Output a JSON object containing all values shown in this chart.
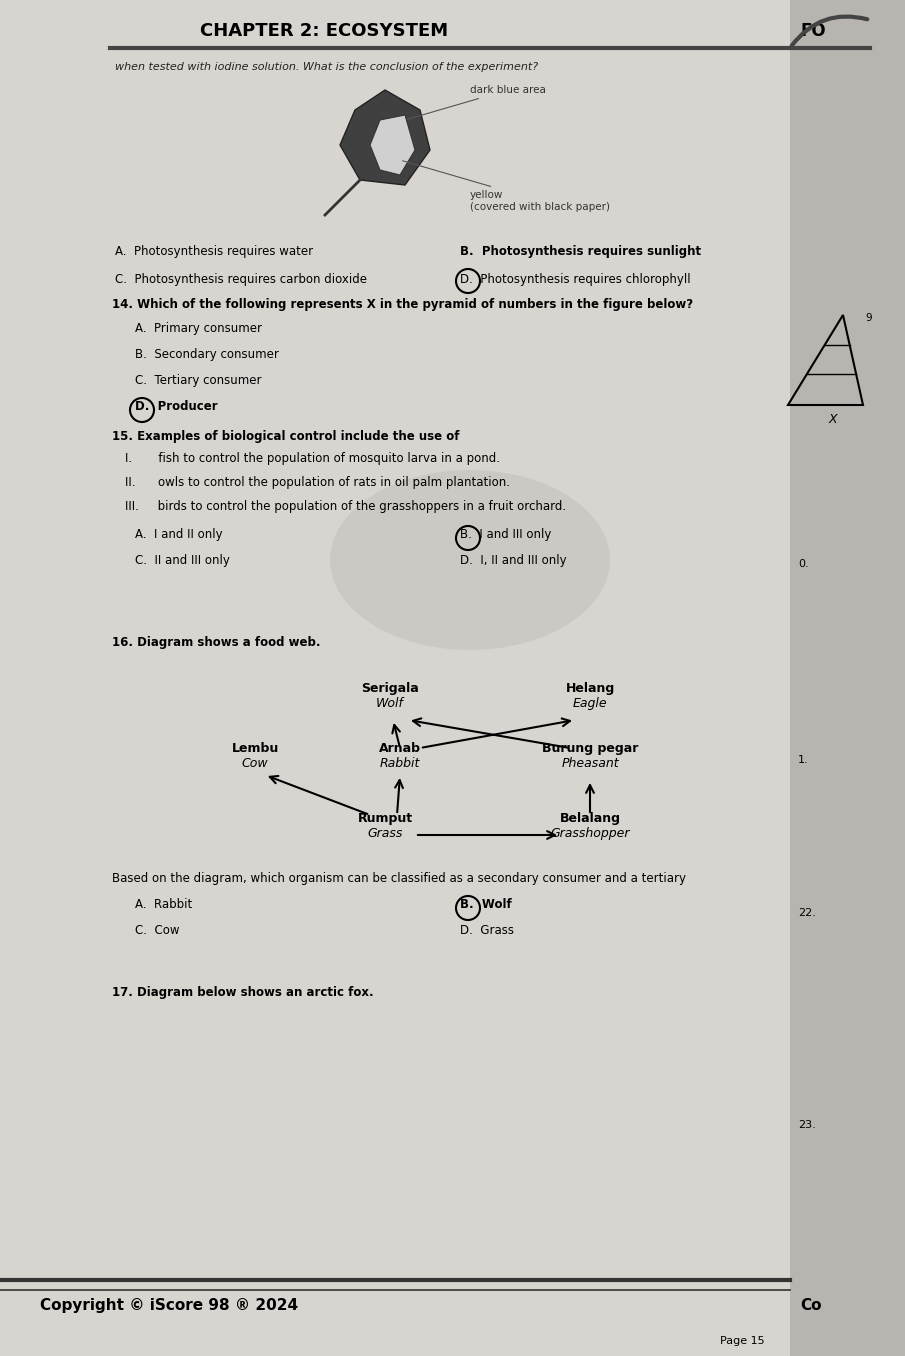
{
  "bg_left": "#c8c5c0",
  "bg_right": "#c0bdb8",
  "page_bg": "#dddbd6",
  "title": "CHAPTER 2: ECOSYSTEM",
  "corner_text": "FO",
  "intro_text": "when tested with iodine solution. What is the conclusion of the experiment?",
  "leaf_label1": "dark blue area",
  "leaf_label2": "yellow\n(covered with black paper)",
  "q13_A": "A.  Photosynthesis requires water",
  "q13_B": "B.  Photosynthesis requires sunlight",
  "q13_C": "C.  Photosynthesis requires carbon dioxide",
  "q13_D": "D.  Photosynthesis requires chlorophyll",
  "q14_text": "14. Which of the following represents X in the pyramid of numbers in the figure below?",
  "q14_A": "A.  Primary consumer",
  "q14_B": "B.  Secondary consumer",
  "q14_C": "C.  Tertiary consumer",
  "q14_D": "D.  Producer",
  "q15_text": "15. Examples of biological control include the use of",
  "q15_I": "I.       fish to control the population of mosquito larva in a pond.",
  "q15_II": "II.      owls to control the population of rats in oil palm plantation.",
  "q15_III": "III.     birds to control the population of the grasshoppers in a fruit orchard.",
  "q15_A": "A.  I and II only",
  "q15_B": "B.  I and III only",
  "q15_C": "C.  II and III only",
  "q15_D": "D.  I, II and III only",
  "q16_text": "16. Diagram shows a food web.",
  "q16_question": "Based on the diagram, which organism can be classified as a secondary consumer and a tertiary",
  "q16_A": "A.  Rabbit",
  "q16_B": "B.  Wolf",
  "q16_C": "C.  Cow",
  "q16_D": "D.  Grass",
  "q17_text": "17. Diagram below shows an arctic fox.",
  "copyright": "Copyright © iScore 98 ® 2024",
  "page_num": "Page 15",
  "right_num_1": "1.",
  "right_num_22": "22.",
  "right_num_23": "23.",
  "pyramid_x_label": "X",
  "right_label_0": "0.",
  "right_label_9": "9"
}
